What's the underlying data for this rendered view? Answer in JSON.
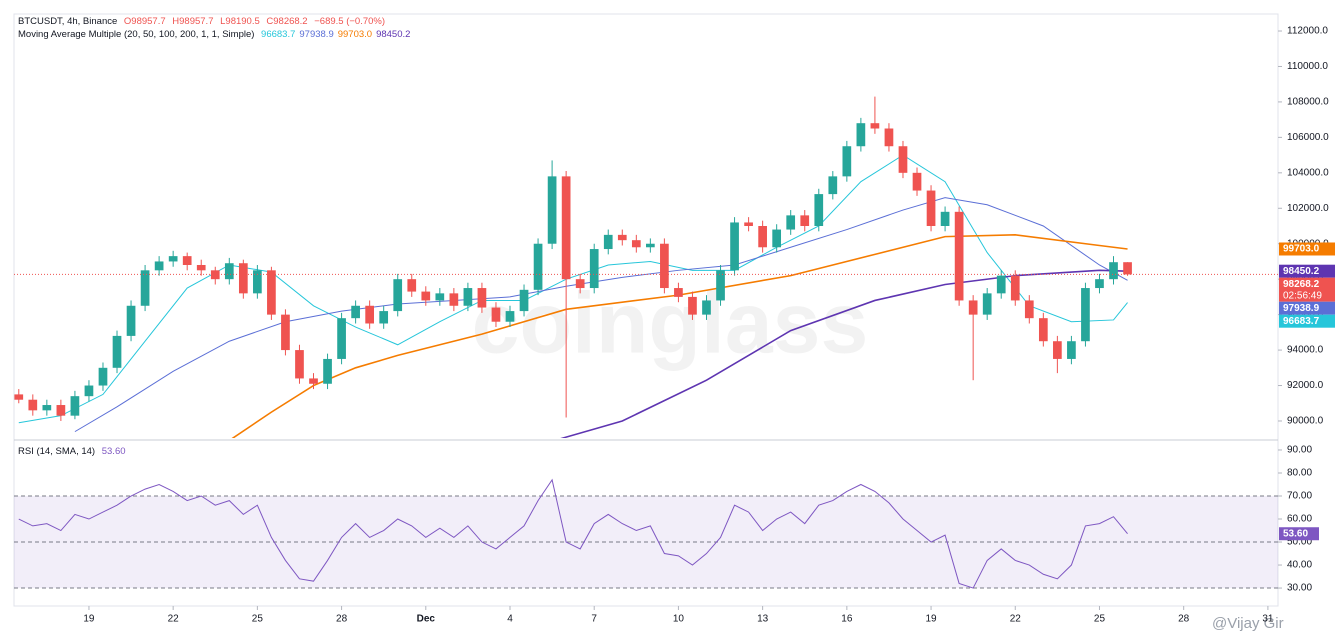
{
  "chart_data": [
    {
      "type": "candlestick",
      "symbol": "BTCUSDT, 4h, Binance",
      "ohlc_labels": [
        "O98957.7",
        "H98957.7",
        "L98190.5",
        "C98268.2",
        "−689.5 (−0.70%)"
      ],
      "indicator": "Moving Average Multiple (20, 50, 100, 200, 1, 1, Simple)",
      "up_color": "#26a69a",
      "down_color": "#ef5350",
      "countdown": "02:56:49",
      "x": [
        16.5,
        17,
        17.5,
        18,
        18.5,
        19,
        19.5,
        20,
        20.5,
        21,
        21.5,
        22,
        22.5,
        23,
        23.5,
        24,
        24.5,
        25,
        25.5,
        26,
        26.5,
        27,
        27.5,
        28,
        28.5,
        29,
        29.5,
        30,
        30.5,
        31,
        31.5,
        32,
        32.5,
        33,
        33.5,
        34,
        34.5,
        35,
        35.5,
        36,
        36.5,
        37,
        37.5,
        38,
        38.5,
        39,
        39.5,
        40,
        40.5,
        41,
        41.5,
        42,
        42.5,
        43,
        43.5,
        44,
        44.5,
        45,
        45.5,
        46,
        46.5,
        47,
        47.5,
        48,
        48.5,
        49,
        49.5,
        50,
        50.5,
        51,
        51.5,
        52,
        52.5,
        53,
        53.5,
        54,
        54.5,
        55,
        55.5,
        56
      ],
      "open": [
        91500,
        91200,
        90600,
        90900,
        90300,
        91400,
        92000,
        93000,
        94800,
        96500,
        98500,
        99000,
        99300,
        98800,
        98500,
        98000,
        98900,
        97200,
        98500,
        96000,
        94000,
        92400,
        92100,
        93500,
        95800,
        96500,
        95500,
        96200,
        98000,
        97300,
        96800,
        97200,
        96500,
        97500,
        96400,
        95600,
        96200,
        97400,
        100000,
        103800,
        98000,
        97500,
        99700,
        100500,
        100200,
        99800,
        100000,
        97500,
        97000,
        96000,
        96800,
        98500,
        101200,
        101000,
        99800,
        100800,
        101600,
        101000,
        102800,
        103800,
        105500,
        106800,
        106500,
        105500,
        104000,
        103000,
        101000,
        101800,
        96800,
        96000,
        97200,
        98200,
        96800,
        95800,
        94500,
        93500,
        94500,
        97500,
        98000,
        98957.7
      ],
      "high": [
        91800,
        91500,
        91200,
        91200,
        91700,
        92300,
        93300,
        95100,
        96800,
        98800,
        99300,
        99600,
        99500,
        99100,
        98700,
        99200,
        99100,
        98800,
        98700,
        96300,
        94300,
        92700,
        93800,
        96100,
        96800,
        96800,
        96500,
        98300,
        98300,
        97600,
        97500,
        97500,
        97800,
        97800,
        96700,
        96500,
        97700,
        100300,
        104700,
        104100,
        98300,
        100000,
        100800,
        100800,
        100500,
        100300,
        100300,
        97800,
        97300,
        97100,
        98800,
        101500,
        101500,
        101300,
        101100,
        101900,
        101900,
        103100,
        104100,
        105800,
        107100,
        108300,
        106800,
        105800,
        104300,
        103300,
        102100,
        102100,
        97100,
        97500,
        98500,
        98500,
        97100,
        96100,
        94800,
        94800,
        97800,
        98300,
        99300,
        98957.7
      ],
      "low": [
        91000,
        90300,
        90300,
        90000,
        90100,
        91100,
        91700,
        92700,
        94500,
        96200,
        98200,
        98700,
        98500,
        98200,
        97700,
        97700,
        96900,
        96900,
        95700,
        93700,
        92100,
        91800,
        91800,
        93200,
        95500,
        95200,
        95200,
        95900,
        97000,
        96500,
        96500,
        96200,
        96200,
        96100,
        95300,
        95300,
        95900,
        97100,
        99700,
        90200,
        97200,
        97200,
        99400,
        99900,
        99500,
        99500,
        97200,
        96700,
        95700,
        95700,
        96500,
        98200,
        100700,
        99500,
        99500,
        100500,
        100700,
        100700,
        102500,
        103500,
        105200,
        106200,
        105200,
        103700,
        102700,
        100700,
        100700,
        96500,
        92300,
        95700,
        96900,
        96500,
        95500,
        94200,
        92700,
        93200,
        94200,
        97200,
        97700,
        98190.5
      ],
      "close": [
        91200,
        90600,
        90900,
        90300,
        91400,
        92000,
        93000,
        94800,
        96500,
        98500,
        99000,
        99300,
        98800,
        98500,
        98000,
        98900,
        97200,
        98500,
        96000,
        94000,
        92400,
        92100,
        93500,
        95800,
        96500,
        95500,
        96200,
        98000,
        97300,
        96800,
        97200,
        96500,
        97500,
        96400,
        95600,
        96200,
        97400,
        100000,
        103800,
        98000,
        97500,
        99700,
        100500,
        100200,
        99800,
        100000,
        97500,
        97000,
        96000,
        96800,
        98500,
        101200,
        101000,
        99800,
        100800,
        101600,
        101000,
        102800,
        103800,
        105500,
        106800,
        106500,
        105500,
        104000,
        103000,
        101000,
        101800,
        96800,
        96000,
        97200,
        98200,
        96800,
        95800,
        94500,
        93500,
        94500,
        97500,
        98000,
        98957.7,
        98268.2
      ],
      "series": [
        {
          "color": "#26c6da",
          "label": "96683.7",
          "x": [
            16.5,
            18,
            19.5,
            21,
            22.5,
            24,
            25.5,
            27,
            28.5,
            30,
            31.5,
            33,
            34.5,
            36,
            37.5,
            39,
            40.5,
            42,
            43.5,
            45,
            46.5,
            48,
            49.5,
            51,
            52.5,
            54,
            55.5,
            56
          ],
          "values": [
            89900,
            90300,
            91500,
            94500,
            97500,
            98800,
            98400,
            96500,
            95300,
            94300,
            95600,
            96800,
            96800,
            98000,
            98800,
            99000,
            98500,
            98500,
            99800,
            101000,
            103500,
            105000,
            103500,
            99500,
            96500,
            95600,
            95700,
            96683.7
          ]
        },
        {
          "color": "#5b6fd6",
          "label": "97938.9",
          "x": [
            18.5,
            20,
            22,
            24,
            26,
            28,
            30,
            32,
            34,
            36,
            38,
            40,
            42,
            44,
            46,
            48,
            49.5,
            51,
            53,
            55,
            56
          ],
          "values": [
            89400,
            90800,
            92800,
            94500,
            95600,
            96200,
            96600,
            96800,
            97000,
            97600,
            98100,
            98500,
            98800,
            99800,
            100800,
            101900,
            102600,
            102200,
            101000,
            98800,
            97938.9
          ]
        },
        {
          "color": "#f57c00",
          "label": "99703.0",
          "x": [
            24,
            25.5,
            27,
            28.5,
            30,
            33,
            36,
            40,
            44,
            47,
            49.5,
            52,
            55,
            56
          ],
          "values": [
            88900,
            90500,
            92000,
            93000,
            93700,
            94900,
            96300,
            97100,
            98200,
            99400,
            100400,
            100500,
            99900,
            99703.0
          ]
        },
        {
          "color": "#5e35b1",
          "label": "98450.2",
          "x": [
            35.8,
            38,
            41,
            44,
            47,
            49.5,
            52,
            55,
            56
          ],
          "values": [
            89000,
            90000,
            92300,
            95100,
            96800,
            97700,
            98200,
            98500,
            98450.2
          ]
        }
      ],
      "xlim": [
        16.33,
        61.36
      ],
      "xticks": [
        19,
        22,
        25,
        28,
        {
          "value": 31,
          "label": "Dec"
        },
        {
          "value": 34,
          "label": "4"
        },
        {
          "value": 37,
          "label": "7"
        },
        {
          "value": 40,
          "label": "10"
        },
        {
          "value": 43,
          "label": "13"
        },
        {
          "value": 46,
          "label": "16"
        },
        {
          "value": 49,
          "label": "19"
        },
        {
          "value": 52,
          "label": "22"
        },
        {
          "value": 55,
          "label": "25"
        },
        {
          "value": 58,
          "label": "28"
        },
        {
          "value": 61,
          "label": "31"
        }
      ],
      "ylim": [
        89040,
        112960
      ],
      "yticks": [
        {
          "value": 90000,
          "label": "90000.0"
        },
        {
          "value": 92000,
          "label": "92000.0"
        },
        {
          "value": 94000,
          "label": "94000.0"
        },
        {
          "value": 96000,
          "label": "96000.0"
        },
        {
          "value": 98000,
          "label": "98000.0"
        },
        {
          "value": 100000,
          "label": "100000.0"
        },
        {
          "value": 102000,
          "label": "102000.0"
        },
        {
          "value": 104000,
          "label": "104000.0"
        },
        {
          "value": 106000,
          "label": "106000.0"
        },
        {
          "value": 108000,
          "label": "108000.0"
        },
        {
          "value": 110000,
          "label": "110000.0"
        },
        {
          "value": 112000,
          "label": "112000.0"
        }
      ]
    },
    {
      "type": "line",
      "title": "RSI (14, SMA, 14)",
      "value_label": "53.60",
      "color": "#7e57c2",
      "values": [
        60,
        57,
        58,
        55,
        62,
        60,
        63,
        66,
        70,
        73,
        75,
        72,
        68,
        70,
        66,
        68,
        62,
        66,
        52,
        42,
        34,
        33,
        42,
        52,
        58,
        52,
        55,
        60,
        57,
        52,
        56,
        52,
        57,
        50,
        47,
        52,
        57,
        68,
        77,
        50,
        47,
        58,
        62,
        58,
        55,
        57,
        45,
        44,
        40,
        45,
        52,
        66,
        63,
        55,
        60,
        63,
        58,
        66,
        68,
        72,
        75,
        72,
        67,
        60,
        55,
        50,
        53,
        32,
        30,
        42,
        47,
        42,
        40,
        36,
        34,
        40,
        57,
        58,
        61,
        53.6
      ],
      "levels": [
        70,
        50,
        30
      ],
      "ylim": [
        22.2,
        93.9
      ],
      "yticks": [
        {
          "value": 30,
          "label": "30.00"
        },
        {
          "value": 40,
          "label": "40.00"
        },
        {
          "value": 50,
          "label": "50.00"
        },
        {
          "value": 60,
          "label": "60.00"
        },
        {
          "value": 70,
          "label": "70.00"
        },
        {
          "value": 80,
          "label": "80.00"
        },
        {
          "value": 90,
          "label": "90.00"
        }
      ]
    }
  ],
  "watermark": "coinglass",
  "credit": "@Vijay Gir"
}
